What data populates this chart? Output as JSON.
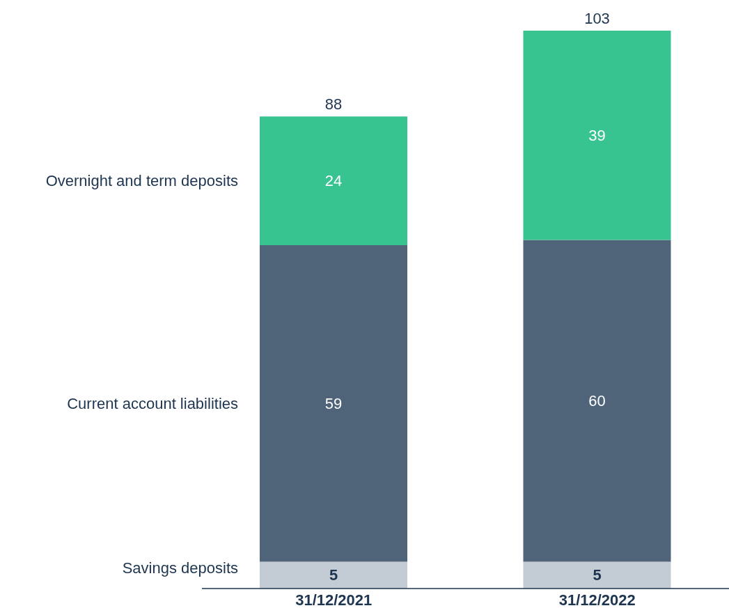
{
  "chart_data": {
    "type": "bar",
    "stacked": true,
    "categories": [
      "31/12/2021",
      "31/12/2022"
    ],
    "series": [
      {
        "name": "Savings deposits",
        "color": "#c3ccd4",
        "values": [
          5,
          5
        ]
      },
      {
        "name": "Current account liabilities",
        "color": "#4f6479",
        "values": [
          59,
          60
        ]
      },
      {
        "name": "Overnight and term deposits",
        "color": "#38c490",
        "values": [
          24,
          39
        ]
      }
    ],
    "data_labels": true,
    "totals": [
      "88",
      "103"
    ]
  }
}
